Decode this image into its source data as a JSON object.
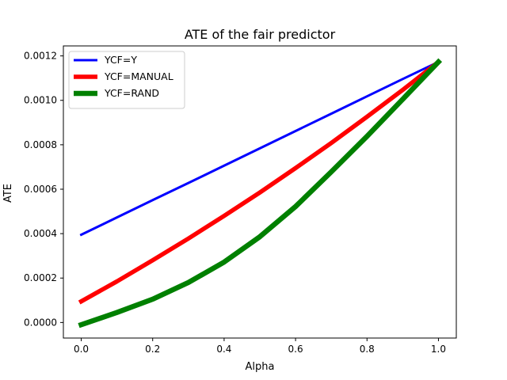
{
  "chart_data": {
    "type": "line",
    "title": "ATE of the fair predictor",
    "xlabel": "Alpha",
    "ylabel": "ATE",
    "xlim": [
      -0.05,
      1.05
    ],
    "ylim": [
      -7e-05,
      0.001245
    ],
    "xticks": [
      0.0,
      0.2,
      0.4,
      0.6,
      0.8,
      1.0
    ],
    "xtick_labels": [
      "0.0",
      "0.2",
      "0.4",
      "0.6",
      "0.8",
      "1.0"
    ],
    "yticks": [
      0.0,
      0.0002,
      0.0004,
      0.0006,
      0.0008,
      0.001,
      0.0012
    ],
    "ytick_labels": [
      "0.0000",
      "0.0002",
      "0.0004",
      "0.0006",
      "0.0008",
      "0.0010",
      "0.0012"
    ],
    "grid": false,
    "legend_position": "top-left",
    "x": [
      0.0,
      0.1,
      0.2,
      0.3,
      0.4,
      0.5,
      0.6,
      0.7,
      0.8,
      0.9,
      1.0
    ],
    "series": [
      {
        "name": "YCF=Y",
        "color": "#0000ff",
        "line_weight": "thin",
        "values": [
          0.000395,
          0.000473,
          0.000551,
          0.000628,
          0.000706,
          0.000784,
          0.000862,
          0.00094,
          0.001018,
          0.001096,
          0.001173
        ]
      },
      {
        "name": "YCF=MANUAL",
        "color": "#ff0000",
        "line_weight": "medium",
        "values": [
          9.5e-05,
          0.000185,
          0.00028,
          0.000378,
          0.00048,
          0.000585,
          0.000695,
          0.000808,
          0.000926,
          0.001047,
          0.001173
        ]
      },
      {
        "name": "YCF=RAND",
        "color": "#008000",
        "line_weight": "thick",
        "values": [
          -1e-05,
          4.5e-05,
          0.000105,
          0.00018,
          0.000272,
          0.000386,
          0.000522,
          0.000678,
          0.000838,
          0.001005,
          0.001173
        ]
      }
    ]
  }
}
